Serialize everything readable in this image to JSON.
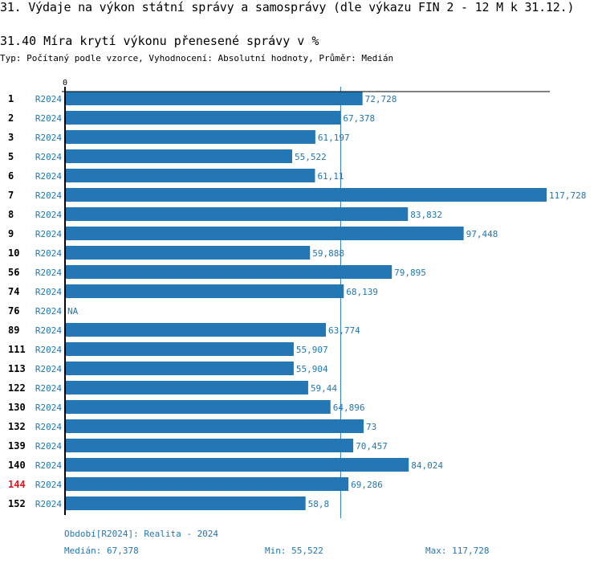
{
  "header": {
    "title": "31. Výdaje na výkon státní správy a samosprávy (dle výkazu FIN 2 - 12 M k 31.12.)",
    "subtitle": "31.40 Míra krytí výkonu přenesené správy v %",
    "meta": "Typ: Počítaný podle vzorce, Vyhodnocení: Absolutní hodnoty, Průměr: Medián"
  },
  "colors": {
    "bar": "#2277b4",
    "highlight_label": "#e8141b",
    "text": "#000000"
  },
  "chart_data": {
    "type": "bar",
    "orientation": "horizontal",
    "title": "31.40 Míra krytí výkonu přenesené správy v %",
    "xlabel": "",
    "ylabel": "",
    "x_tick_labels": [
      "0"
    ],
    "xlim": [
      0,
      117.728
    ],
    "median": 67.378,
    "period_label": "R2024",
    "categories": [
      "1",
      "2",
      "3",
      "5",
      "6",
      "7",
      "8",
      "9",
      "10",
      "56",
      "74",
      "76",
      "89",
      "111",
      "113",
      "122",
      "130",
      "132",
      "139",
      "140",
      "144",
      "152"
    ],
    "values": [
      72.728,
      67.378,
      61.197,
      55.522,
      61.11,
      117.728,
      83.832,
      97.448,
      59.888,
      79.895,
      68.139,
      null,
      63.774,
      55.907,
      55.904,
      59.44,
      64.896,
      73,
      70.457,
      84.024,
      69.286,
      58.8
    ],
    "value_labels": [
      "72,728",
      "67,378",
      "61,197",
      "55,522",
      "61,11",
      "117,728",
      "83,832",
      "97,448",
      "59,888",
      "79,895",
      "68,139",
      "NA",
      "63,774",
      "55,907",
      "55,904",
      "59,44",
      "64,896",
      "73",
      "70,457",
      "84,024",
      "69,286",
      "58,8"
    ],
    "highlighted_category": "144",
    "grid": false,
    "legend": "none"
  },
  "footer": {
    "period_note": "Období[R2024]: Realita - 2024",
    "median": "Medián: 67,378",
    "min": "Min: 55,522",
    "max": "Max: 117,728"
  }
}
